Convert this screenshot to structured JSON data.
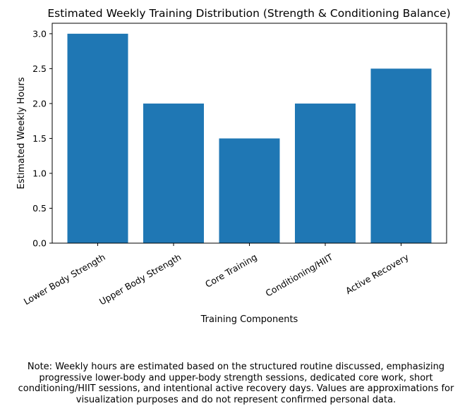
{
  "chart_data": {
    "type": "bar",
    "title": "Estimated Weekly Training Distribution (Strength & Conditioning Balance)",
    "xlabel": "Training Components",
    "ylabel": "Estimated Weekly Hours",
    "categories": [
      "Lower Body Strength",
      "Upper Body Strength",
      "Core Training",
      "Conditioning/HIIT",
      "Active Recovery"
    ],
    "values": [
      3.0,
      2.0,
      1.5,
      2.0,
      2.5
    ],
    "ylim": [
      0,
      3.15
    ],
    "yticks": [
      "0.0",
      "0.5",
      "1.0",
      "1.5",
      "2.0",
      "2.5",
      "3.0"
    ],
    "bar_color": "#1f77b4",
    "grid": false,
    "note": "Note: Weekly hours are estimated based on the structured routine discussed, emphasizing progressive lower-body and upper-body strength sessions, dedicated core work, short conditioning/HIIT sessions, and intentional active recovery days. Values are approximations for visualization purposes and do not represent confirmed personal data."
  }
}
